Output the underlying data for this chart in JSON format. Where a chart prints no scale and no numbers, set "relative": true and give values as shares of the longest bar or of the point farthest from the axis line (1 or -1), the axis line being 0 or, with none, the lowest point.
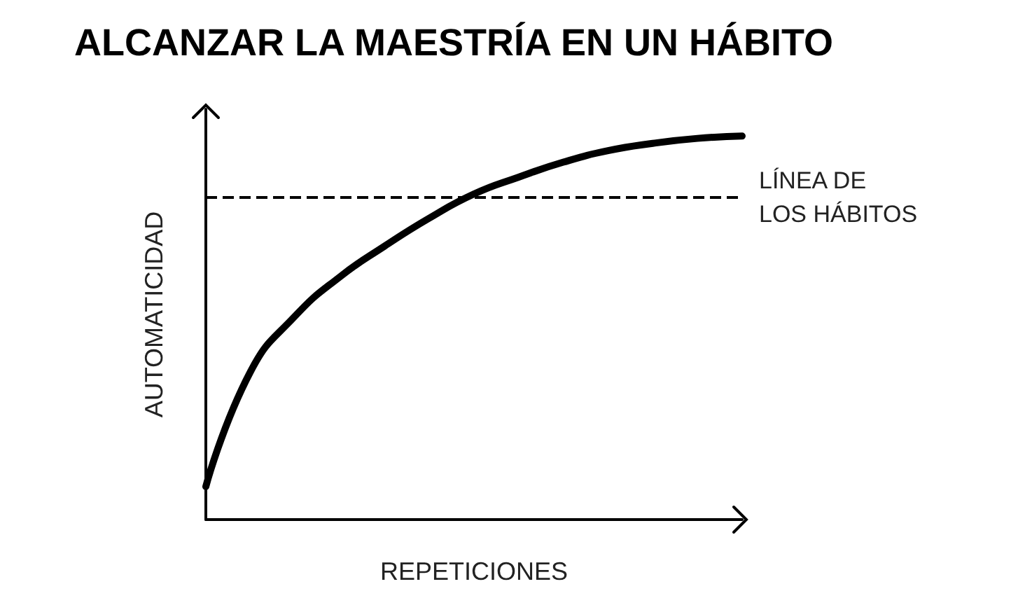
{
  "chart_data": {
    "type": "line",
    "title": "ALCANZAR LA MAESTRÍA EN UN HÁBITO",
    "xlabel": "REPETICIONES",
    "ylabel": "AUTOMATICIDAD",
    "relative": true,
    "categories": [
      null,
      null,
      null,
      null,
      null,
      null,
      null,
      null,
      null,
      null,
      null,
      null,
      null
    ],
    "series": [
      {
        "color": "#000000",
        "values": [
          0.086,
          0.386,
          0.531,
          0.633,
          0.713,
          0.786,
          0.849,
          0.893,
          0.932,
          0.962,
          0.981,
          0.994,
          1
        ]
      }
    ],
    "ref_lines": [
      {
        "axis": "y",
        "value": 0.844,
        "label": "LÍNEA DE LOS HÁBITOS",
        "color": "#000000",
        "line_style": "dashed"
      }
    ],
    "grid": false,
    "marker": "none",
    "line_style": "solid"
  }
}
